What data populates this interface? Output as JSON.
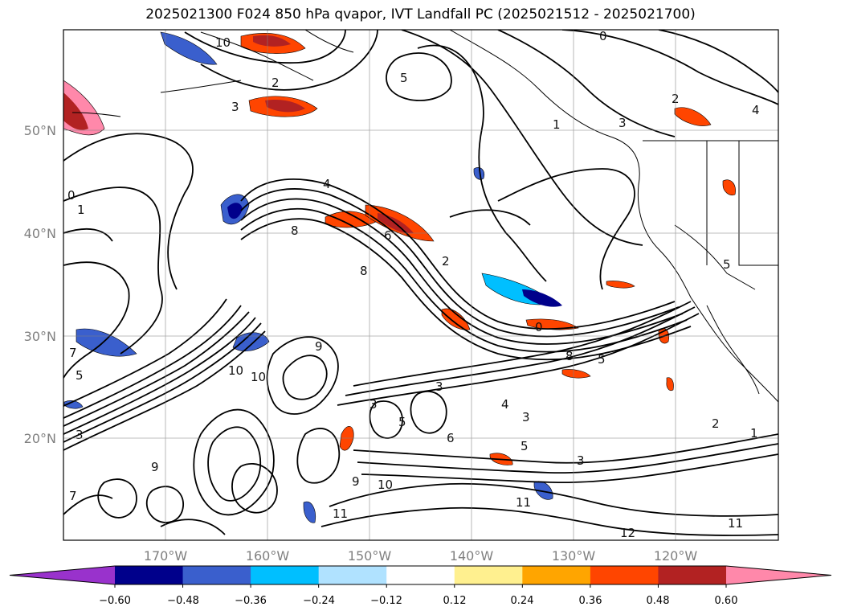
{
  "title": "2025021300 F024 850 hPa qvapor, IVT Landfall PC (2025021512 - 2025021700)",
  "axes": {
    "lon_ticks": [
      "170°W",
      "160°W",
      "150°W",
      "140°W",
      "130°W",
      "120°W"
    ],
    "lat_ticks": [
      "50°N",
      "40°N",
      "30°N",
      "20°N"
    ],
    "grid": true
  },
  "contour_labels": [
    "10",
    "2",
    "3",
    "5",
    "0",
    "1",
    "2",
    "3",
    "4",
    "8",
    "6",
    "2",
    "8",
    "0",
    "8",
    "5",
    "3",
    "4",
    "3",
    "5",
    "2",
    "1",
    "3",
    "6",
    "3",
    "5",
    "10",
    "10",
    "9",
    "7",
    "5",
    "3",
    "9",
    "11",
    "9",
    "10",
    "11",
    "12",
    "11",
    "0",
    "1",
    "7",
    "4",
    "5"
  ],
  "colorbar": {
    "ticks": [
      "−0.60",
      "−0.48",
      "−0.36",
      "−0.24",
      "−0.12",
      "0.12",
      "0.24",
      "0.36",
      "0.48",
      "0.60"
    ],
    "colors": [
      "#9932cc",
      "#00008b",
      "#3a5fcd",
      "#00bfff",
      "#b0e2ff",
      "#ffffff",
      "#fff08f",
      "#ffa500",
      "#ff4500",
      "#b22222",
      "#ff88aa"
    ]
  }
}
